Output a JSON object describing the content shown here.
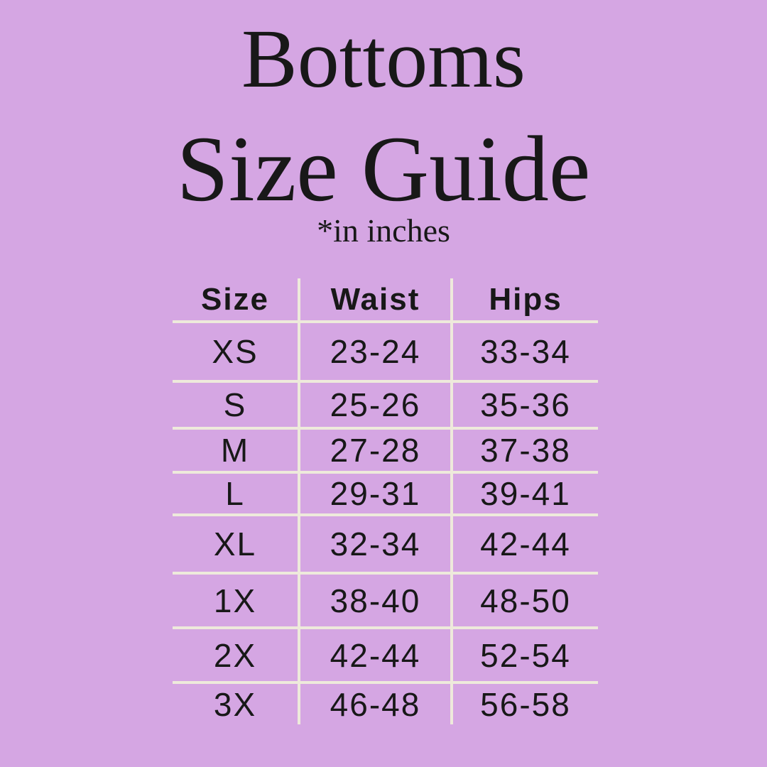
{
  "page": {
    "background_color": "#d5a6e3",
    "divider_color": "#eeeadb",
    "text_color": "#181818"
  },
  "header": {
    "title_line1": "Bottoms",
    "title_line2": "Size Guide",
    "subtitle": "*in inches"
  },
  "chart_data": {
    "type": "table",
    "title": "Bottoms Size Guide",
    "note": "*in inches",
    "units": "inches",
    "columns": [
      "Size",
      "Waist",
      "Hips"
    ],
    "rows": [
      [
        "XS",
        "23-24",
        "33-34"
      ],
      [
        "S",
        "25-26",
        "35-36"
      ],
      [
        "M",
        "27-28",
        "37-38"
      ],
      [
        "L",
        "29-31",
        "39-41"
      ],
      [
        "XL",
        "32-34",
        "42-44"
      ],
      [
        "1X",
        "38-40",
        "48-50"
      ],
      [
        "2X",
        "42-44",
        "52-54"
      ],
      [
        "3X",
        "46-48",
        "56-58"
      ]
    ]
  }
}
